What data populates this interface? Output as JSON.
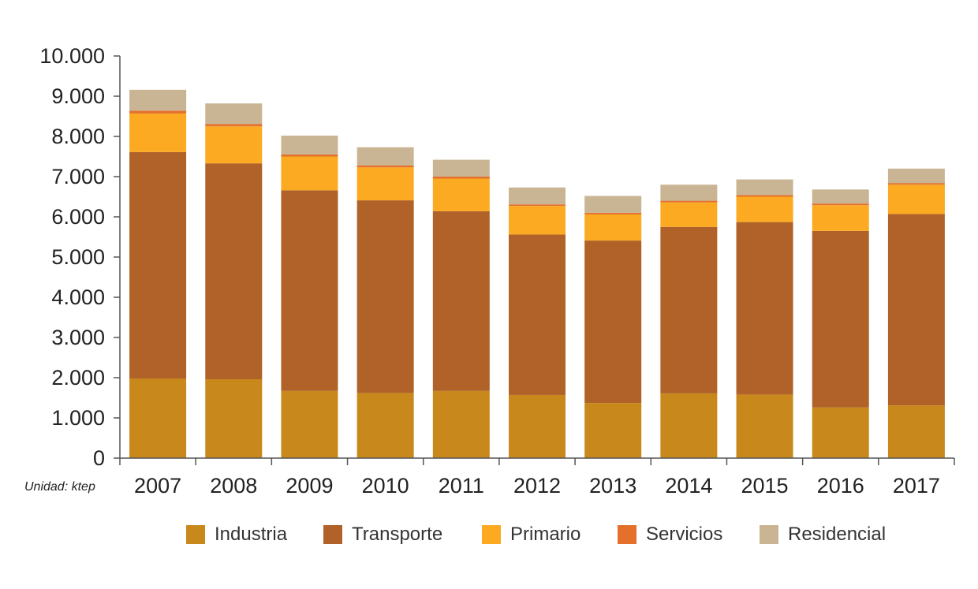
{
  "chart_data": {
    "type": "bar",
    "stacked": true,
    "categories": [
      "2007",
      "2008",
      "2009",
      "2010",
      "2011",
      "2012",
      "2013",
      "2014",
      "2015",
      "2016",
      "2017"
    ],
    "series": [
      {
        "name": "Industria",
        "color": "#C8881B",
        "values": [
          1980,
          1960,
          1670,
          1620,
          1670,
          1570,
          1370,
          1610,
          1580,
          1260,
          1310
        ]
      },
      {
        "name": "Transporte",
        "color": "#B06228",
        "values": [
          5630,
          5370,
          4990,
          4790,
          4470,
          3990,
          4040,
          4140,
          4290,
          4390,
          4760
        ]
      },
      {
        "name": "Primario",
        "color": "#FBAA22",
        "values": [
          960,
          920,
          840,
          820,
          810,
          710,
          650,
          610,
          630,
          640,
          730
        ]
      },
      {
        "name": "Servicios",
        "color": "#E4702C",
        "values": [
          70,
          60,
          50,
          50,
          50,
          40,
          40,
          40,
          40,
          40,
          40
        ]
      },
      {
        "name": "Residencial",
        "color": "#C9B594",
        "values": [
          520,
          510,
          470,
          450,
          420,
          420,
          420,
          400,
          390,
          350,
          360
        ]
      }
    ],
    "yticks": [
      0,
      1000,
      2000,
      3000,
      4000,
      5000,
      6000,
      7000,
      8000,
      9000,
      10000
    ],
    "ytick_labels": [
      "0",
      "1.000",
      "2.000",
      "3.000",
      "4.000",
      "5.000",
      "6.000",
      "7.000",
      "8.000",
      "9.000",
      "10.000"
    ],
    "ylim": [
      0,
      10000
    ],
    "unit_label": "Unidad: ktep",
    "title": "",
    "xlabel": "",
    "ylabel": "",
    "grid": false,
    "legend_position": "bottom"
  }
}
